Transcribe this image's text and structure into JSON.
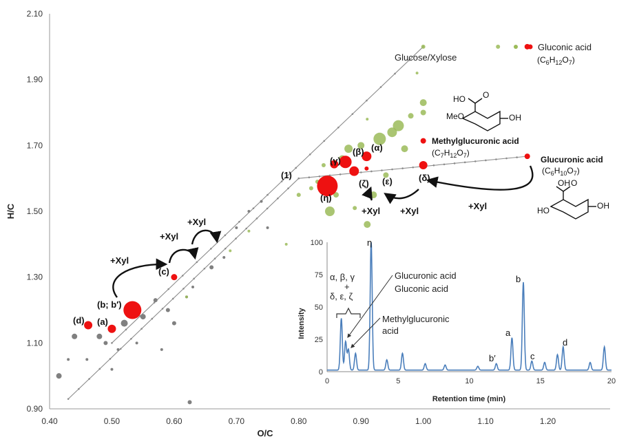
{
  "chart_data": [
    {
      "type": "scatter",
      "xlabel": "O/C",
      "ylabel": "H/C",
      "xlim": [
        0.4,
        1.3
      ],
      "ylim": [
        0.9,
        2.1
      ],
      "x_ticks": [
        "0.40",
        "0.50",
        "0.60",
        "0.70",
        "0.80",
        "0.90",
        "1.00",
        "1.10",
        "1.20"
      ],
      "y_ticks": [
        "0.90",
        "1.10",
        "1.30",
        "1.50",
        "1.70",
        "1.90",
        "2.10"
      ],
      "grid": false,
      "colors": {
        "green": "#9bbb59",
        "red": "#ee1111",
        "gray": "#808080"
      },
      "reference_lines": [
        {
          "label": "Glucose/Xylose",
          "points": [
            [
              0.5,
              1.1
            ],
            [
              1.0,
              2.0
            ]
          ]
        },
        {
          "label": "",
          "points": [
            [
              0.43,
              0.93
            ],
            [
              0.8,
              1.6
            ]
          ]
        },
        {
          "label": "",
          "points": [
            [
              0.8,
              1.6
            ],
            [
              1.167,
              1.667
            ]
          ]
        }
      ],
      "series": [
        {
          "color": "red",
          "points": [
            {
              "x": 0.462,
              "y": 1.154,
              "label": "(d)"
            },
            {
              "x": 0.5,
              "y": 1.143,
              "label": "(a)"
            },
            {
              "x": 0.533,
              "y": 1.2,
              "label": "(b; b′)"
            },
            {
              "x": 0.6,
              "y": 1.3,
              "label": "(c)"
            },
            {
              "x": 0.846,
              "y": 1.577,
              "label": "(η)"
            },
            {
              "x": 0.857,
              "y": 1.643,
              "label": "(γ)"
            },
            {
              "x": 0.875,
              "y": 1.65,
              "label": "(β)"
            },
            {
              "x": 0.889,
              "y": 1.622,
              "label": "(ζ)"
            },
            {
              "x": 0.909,
              "y": 1.667,
              "label": "(α)"
            },
            {
              "x": 0.909,
              "y": 1.63,
              "label": "(ε)"
            },
            {
              "x": 1.0,
              "y": 1.64,
              "label": "(δ)"
            },
            {
              "x": 1.0,
              "y": 1.714,
              "label": "Methylglucuronic acid"
            },
            {
              "x": 1.167,
              "y": 1.667,
              "label": "Glucuronic acid"
            },
            {
              "x": 1.167,
              "y": 2.0,
              "label": "Gluconic acid"
            }
          ]
        },
        {
          "color": "green",
          "points": [
            {
              "x": 0.85,
              "y": 1.5
            },
            {
              "x": 0.92,
              "y": 1.55
            },
            {
              "x": 0.91,
              "y": 1.46
            },
            {
              "x": 0.95,
              "y": 1.74
            },
            {
              "x": 0.93,
              "y": 1.72
            },
            {
              "x": 0.88,
              "y": 1.69
            },
            {
              "x": 0.87,
              "y": 1.66
            },
            {
              "x": 0.9,
              "y": 1.7
            },
            {
              "x": 0.96,
              "y": 1.76
            },
            {
              "x": 1.0,
              "y": 1.83
            },
            {
              "x": 1.0,
              "y": 1.8
            },
            {
              "x": 0.98,
              "y": 1.79
            },
            {
              "x": 0.83,
              "y": 1.59
            },
            {
              "x": 0.82,
              "y": 1.57
            },
            {
              "x": 0.86,
              "y": 1.55
            },
            {
              "x": 0.89,
              "y": 1.51
            },
            {
              "x": 0.97,
              "y": 1.69
            },
            {
              "x": 0.94,
              "y": 1.61
            },
            {
              "x": 0.95,
              "y": 1.4
            },
            {
              "x": 1.0,
              "y": 1.25
            },
            {
              "x": 1.0,
              "y": 1.34
            },
            {
              "x": 1.0,
              "y": 1.64
            },
            {
              "x": 1.12,
              "y": 2.0
            },
            {
              "x": 0.78,
              "y": 1.4
            },
            {
              "x": 0.8,
              "y": 1.55
            },
            {
              "x": 0.84,
              "y": 1.64
            },
            {
              "x": 0.91,
              "y": 1.78
            },
            {
              "x": 0.99,
              "y": 1.92
            },
            {
              "x": 1.0,
              "y": 2.0
            },
            {
              "x": 0.72,
              "y": 1.44
            },
            {
              "x": 0.69,
              "y": 1.38
            },
            {
              "x": 0.62,
              "y": 1.24
            }
          ]
        },
        {
          "color": "gray",
          "points": [
            {
              "x": 0.415,
              "y": 1.0
            },
            {
              "x": 0.44,
              "y": 1.12
            },
            {
              "x": 0.48,
              "y": 1.12
            },
            {
              "x": 0.49,
              "y": 1.1
            },
            {
              "x": 0.52,
              "y": 1.16
            },
            {
              "x": 0.55,
              "y": 1.18
            },
            {
              "x": 0.57,
              "y": 1.23
            },
            {
              "x": 0.59,
              "y": 1.2
            },
            {
              "x": 0.6,
              "y": 1.16
            },
            {
              "x": 0.62,
              "y": 1.24
            },
            {
              "x": 0.63,
              "y": 1.27
            },
            {
              "x": 0.66,
              "y": 1.33
            },
            {
              "x": 0.68,
              "y": 1.36
            },
            {
              "x": 0.625,
              "y": 0.92
            },
            {
              "x": 0.43,
              "y": 1.05
            },
            {
              "x": 0.51,
              "y": 1.08
            },
            {
              "x": 0.54,
              "y": 1.1
            },
            {
              "x": 0.58,
              "y": 1.08
            },
            {
              "x": 0.5,
              "y": 1.02
            },
            {
              "x": 0.46,
              "y": 1.05
            },
            {
              "x": 0.75,
              "y": 1.45
            },
            {
              "x": 0.74,
              "y": 1.53
            },
            {
              "x": 0.72,
              "y": 1.5
            },
            {
              "x": 0.7,
              "y": 1.45
            }
          ]
        }
      ],
      "legend": {
        "label": "Gluconic acid",
        "formula": "(C6H12O7)",
        "position": "top-right"
      },
      "annotations": {
        "glucose_xylose": "Glucose/Xylose",
        "point_1": "(1)",
        "methylglucuronic": "Methylglucuronic acid",
        "methylglucuronic_formula": "(C7H12O7)",
        "glucuronic": "Glucuronic acid",
        "glucuronic_formula": "(C6H10O7)",
        "xyl": "+Xyl",
        "xyl_labels": [
          "+Xyl",
          "+Xyl",
          "+Xyl",
          "+Xyl",
          "+Xyl",
          "+Xyl"
        ],
        "struct_methyl": {
          "ho": "HO",
          "o": "O",
          "meo": "MeO",
          "oh": "OH"
        },
        "struct_glucuronic": {
          "oh": "OH",
          "o": "O",
          "ho": "HO"
        }
      }
    },
    {
      "type": "line",
      "xlabel": "Retention time (min)",
      "ylabel": "Intensity",
      "xlim": [
        0,
        20
      ],
      "ylim": [
        0,
        100
      ],
      "x_ticks": [
        "0",
        "5",
        "10",
        "15",
        "20"
      ],
      "y_ticks": [
        "0",
        "25",
        "50",
        "75",
        "100"
      ],
      "color": "#4a7ebb",
      "peaks": [
        {
          "x": 1.0,
          "y": 40
        },
        {
          "x": 1.3,
          "y": 22
        },
        {
          "x": 1.5,
          "y": 16
        },
        {
          "x": 2.0,
          "y": 13
        },
        {
          "x": 3.1,
          "y": 100,
          "label": "η"
        },
        {
          "x": 4.2,
          "y": 8
        },
        {
          "x": 5.3,
          "y": 13
        },
        {
          "x": 6.9,
          "y": 5
        },
        {
          "x": 8.3,
          "y": 4
        },
        {
          "x": 10.6,
          "y": 3
        },
        {
          "x": 11.9,
          "y": 5,
          "label": "b′"
        },
        {
          "x": 13.0,
          "y": 25,
          "label": "a"
        },
        {
          "x": 13.8,
          "y": 68,
          "label": "b"
        },
        {
          "x": 14.4,
          "y": 7,
          "label": "c"
        },
        {
          "x": 15.3,
          "y": 6
        },
        {
          "x": 16.2,
          "y": 12
        },
        {
          "x": 16.6,
          "y": 18,
          "label": "d"
        },
        {
          "x": 18.5,
          "y": 6
        },
        {
          "x": 19.5,
          "y": 18
        }
      ],
      "annotations": {
        "group_top": "α, β, γ",
        "group_plus": "+",
        "group_bottom": "δ, ε, ζ",
        "glucuronic": "Glucuronic acid",
        "gluconic": "Gluconic acid",
        "methyl_line1": "Methylglucuronic",
        "methyl_line2": "acid"
      }
    }
  ]
}
